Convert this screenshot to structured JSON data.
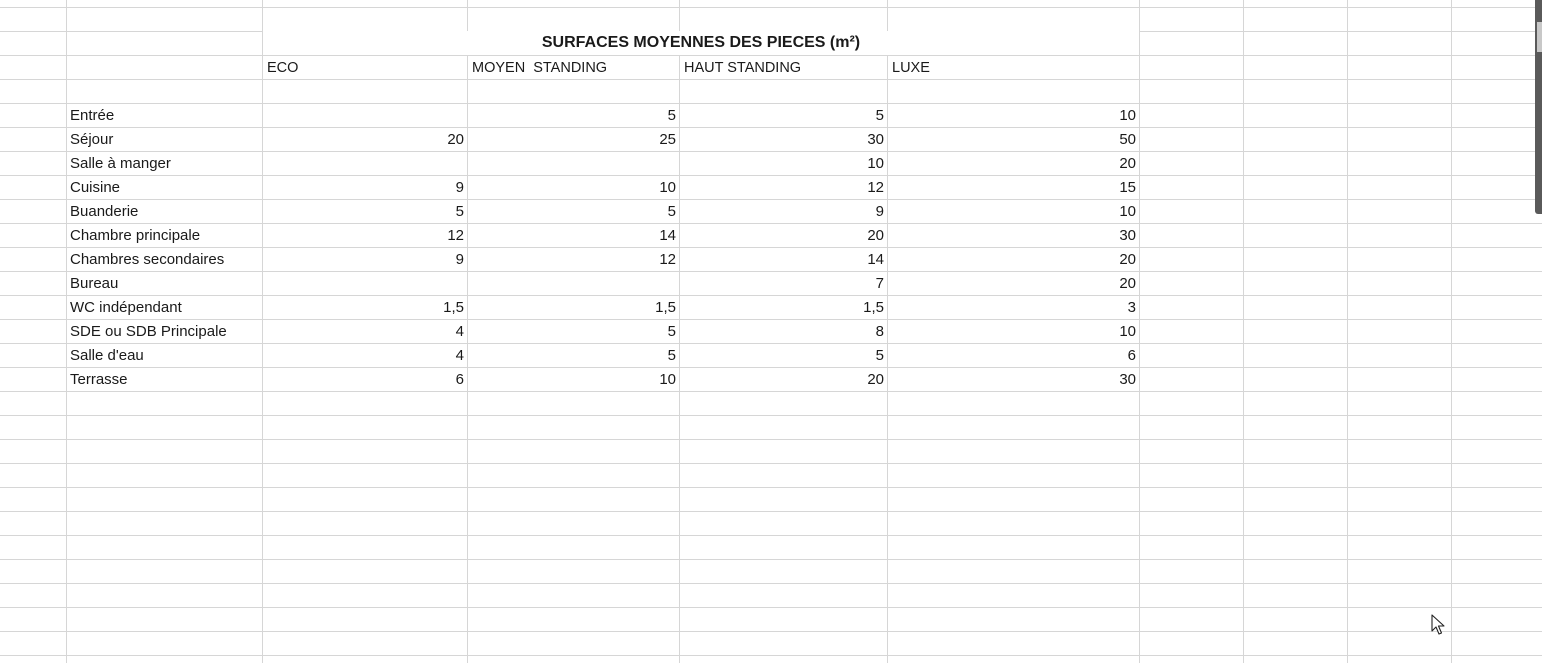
{
  "sheet": {
    "title": "SURFACES MOYENNES DES PIECES (m²)",
    "headers": [
      "ECO",
      "MOYEN  STANDING",
      "HAUT STANDING",
      "LUXE"
    ],
    "rows": [
      {
        "label": "Entrée",
        "values": [
          "",
          "5",
          "5",
          "10"
        ]
      },
      {
        "label": "Séjour",
        "values": [
          "20",
          "25",
          "30",
          "50"
        ]
      },
      {
        "label": "Salle à manger",
        "values": [
          "",
          "",
          "10",
          "20"
        ]
      },
      {
        "label": "Cuisine",
        "values": [
          "9",
          "10",
          "12",
          "15"
        ]
      },
      {
        "label": "Buanderie",
        "values": [
          "5",
          "5",
          "9",
          "10"
        ]
      },
      {
        "label": "Chambre principale",
        "values": [
          "12",
          "14",
          "20",
          "30"
        ]
      },
      {
        "label": "Chambres secondaires",
        "values": [
          "9",
          "12",
          "14",
          "20"
        ]
      },
      {
        "label": "Bureau",
        "values": [
          "",
          "",
          "7",
          "20"
        ]
      },
      {
        "label": "WC indépendant",
        "values": [
          "1,5",
          "1,5",
          "1,5",
          "3"
        ]
      },
      {
        "label": "SDE ou SDB Principale",
        "values": [
          "4",
          "5",
          "8",
          "10"
        ]
      },
      {
        "label": "Salle d'eau",
        "values": [
          "4",
          "5",
          "5",
          "6"
        ]
      },
      {
        "label": "Terrasse",
        "values": [
          "6",
          "10",
          "20",
          "30"
        ]
      }
    ]
  },
  "colors": {
    "gridline": "#d6d6d6",
    "text": "#1a1a1a",
    "background": "#ffffff"
  },
  "icons": {
    "cursor": "mouse-pointer-icon"
  }
}
